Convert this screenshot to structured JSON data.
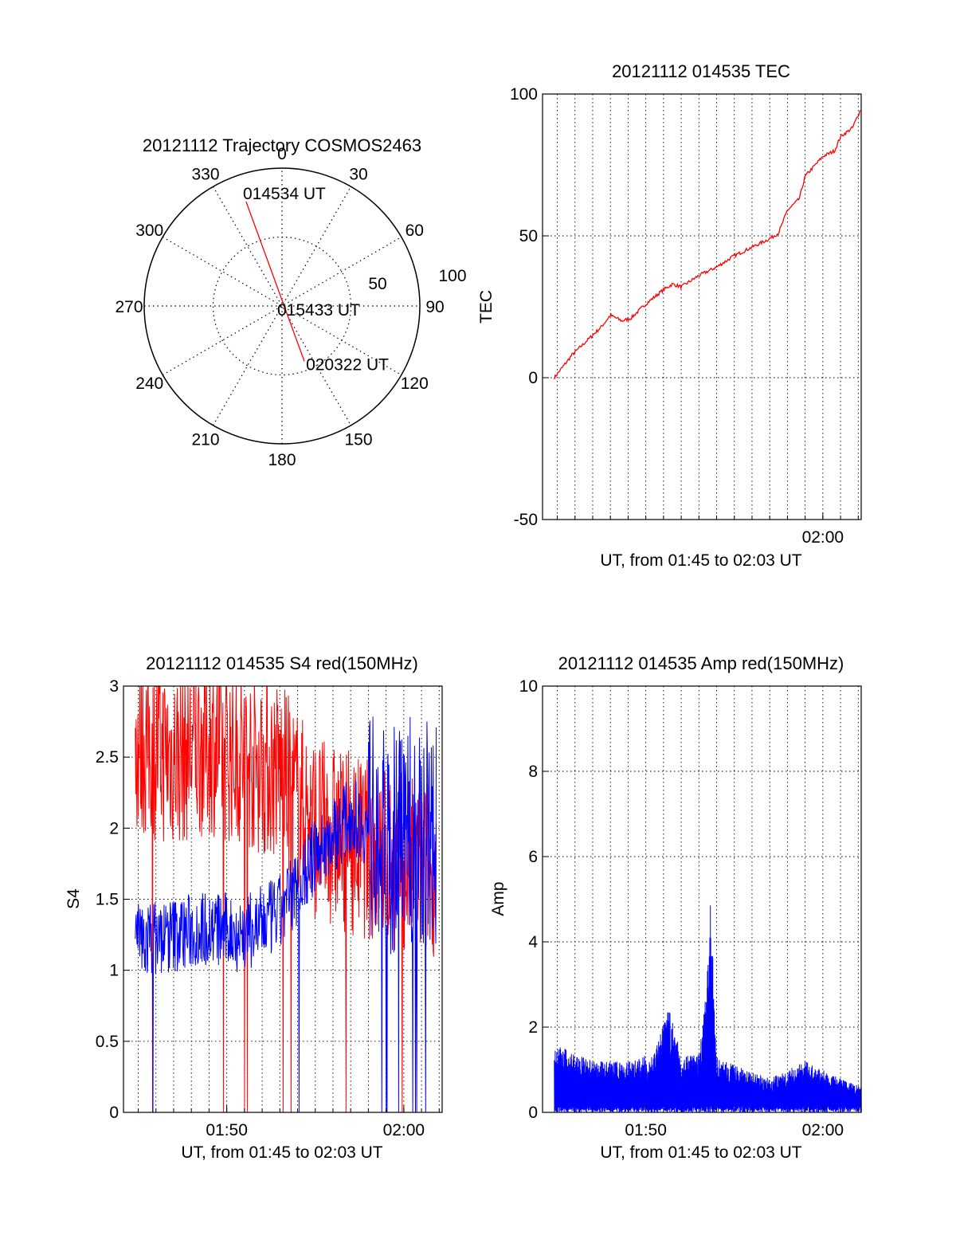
{
  "colors": {
    "red": "#ff0000",
    "blue": "#0000ff",
    "axis": "#000000",
    "grid": "#000000",
    "background": "#ffffff"
  },
  "chart_data": [
    {
      "type": "polar",
      "title": "20121112 Trajectory COSMOS2463",
      "angle_labels": [
        "0",
        "30",
        "60",
        "90",
        "120",
        "150",
        "180",
        "210",
        "240",
        "270",
        "300",
        "330"
      ],
      "radial_labels": [
        "50",
        "100"
      ],
      "radial_values": [
        50,
        100
      ],
      "grid": true,
      "series": [
        {
          "color": "red",
          "points": [
            {
              "azimuth": 341,
              "elevation": 18
            },
            {
              "azimuth": 158,
              "elevation": 51
            }
          ]
        }
      ],
      "annotations": [
        {
          "text": "014534 UT",
          "azimuth": 341,
          "elevation": 18
        },
        {
          "text": "015433 UT",
          "azimuth": 0,
          "elevation": 90
        },
        {
          "text": "020322 UT",
          "azimuth": 158,
          "elevation": 51
        }
      ]
    },
    {
      "type": "line",
      "title": "20121112 014535 TEC",
      "xlabel": "UT, from 01:45 to 02:03 UT",
      "ylabel": "TEC",
      "xlim": [
        "01:44:10",
        "02:02:10"
      ],
      "ylim": [
        -50,
        100
      ],
      "yticks": [
        "100",
        "50",
        "0",
        "-50"
      ],
      "ytick_values": [
        100,
        50,
        0,
        -50
      ],
      "xticks": [
        "02:00"
      ],
      "grid": true,
      "series": [
        {
          "color": "red",
          "x": [
            "01:44:50",
            "01:45:50",
            "01:47:30",
            "01:48:00",
            "01:48:40",
            "01:49:10",
            "01:50:00",
            "01:51:00",
            "01:51:30",
            "01:52:00",
            "01:53:00",
            "01:54:00",
            "01:55:00",
            "01:56:00",
            "01:57:00",
            "01:57:30",
            "01:58:00",
            "01:58:40",
            "01:59:00",
            "02:00:00",
            "02:00:40",
            "02:01:00",
            "02:01:40",
            "02:02:10"
          ],
          "y": [
            0,
            8,
            18,
            22,
            20,
            21,
            26,
            31,
            33,
            32,
            36,
            39,
            43,
            46,
            49,
            51,
            59,
            63,
            71,
            78,
            80,
            85,
            88,
            95
          ]
        }
      ]
    },
    {
      "type": "line",
      "title": "20121112 014535 S4 red(150MHz)",
      "xlabel": "UT, from 01:45 to 02:03 UT",
      "ylabel": "S4",
      "xlim": [
        "01:44:10",
        "02:02:10"
      ],
      "ylim": [
        0,
        3
      ],
      "yticks": [
        "3",
        "2.5",
        "2",
        "1.5",
        "1",
        "0.5",
        "0"
      ],
      "ytick_values": [
        3,
        2.5,
        2,
        1.5,
        1,
        0.5,
        0
      ],
      "xticks": [
        "01:50",
        "02:00"
      ],
      "grid": true,
      "series": [
        {
          "color": "red",
          "x": [
            "01:44:50",
            "01:47:00",
            "01:49:00",
            "01:51:00",
            "01:53:00",
            "01:55:00",
            "01:57:00",
            "01:59:00",
            "02:01:00",
            "02:01:50"
          ],
          "y": [
            2.6,
            2.5,
            2.6,
            2.5,
            2.4,
            2.0,
            1.9,
            1.8,
            1.7,
            1.75
          ]
        },
        {
          "color": "blue",
          "x": [
            "01:44:50",
            "01:47:00",
            "01:49:00",
            "01:51:00",
            "01:53:00",
            "01:55:00",
            "01:57:00",
            "01:59:00",
            "02:01:00",
            "02:01:50"
          ],
          "y": [
            1.2,
            1.25,
            1.3,
            1.25,
            1.4,
            1.8,
            2.1,
            1.9,
            2.0,
            2.0
          ]
        }
      ]
    },
    {
      "type": "line",
      "title": "20121112 014535 Amp red(150MHz)",
      "xlabel": "UT, from 01:45 to 02:03 UT",
      "ylabel": "Amp",
      "xlim": [
        "01:44:10",
        "02:02:10"
      ],
      "ylim": [
        0,
        10
      ],
      "yticks": [
        "10",
        "8",
        "6",
        "4",
        "2",
        "0"
      ],
      "ytick_values": [
        10,
        8,
        6,
        4,
        2,
        0
      ],
      "xticks": [
        "01:50",
        "02:00"
      ],
      "grid": true,
      "series": [
        {
          "color": "blue",
          "x": [
            "01:44:50",
            "01:47:00",
            "01:49:00",
            "01:50:30",
            "01:51:20",
            "01:52:00",
            "01:53:00",
            "01:53:20",
            "01:53:40",
            "01:54:00",
            "01:55:00",
            "01:57:00",
            "01:59:00",
            "02:01:00",
            "02:02:10"
          ],
          "y": [
            1.6,
            1.2,
            1.2,
            1.4,
            2.5,
            1.3,
            1.4,
            2.5,
            5.0,
            1.3,
            1.1,
            0.8,
            1.2,
            0.8,
            0.6
          ]
        }
      ]
    }
  ]
}
